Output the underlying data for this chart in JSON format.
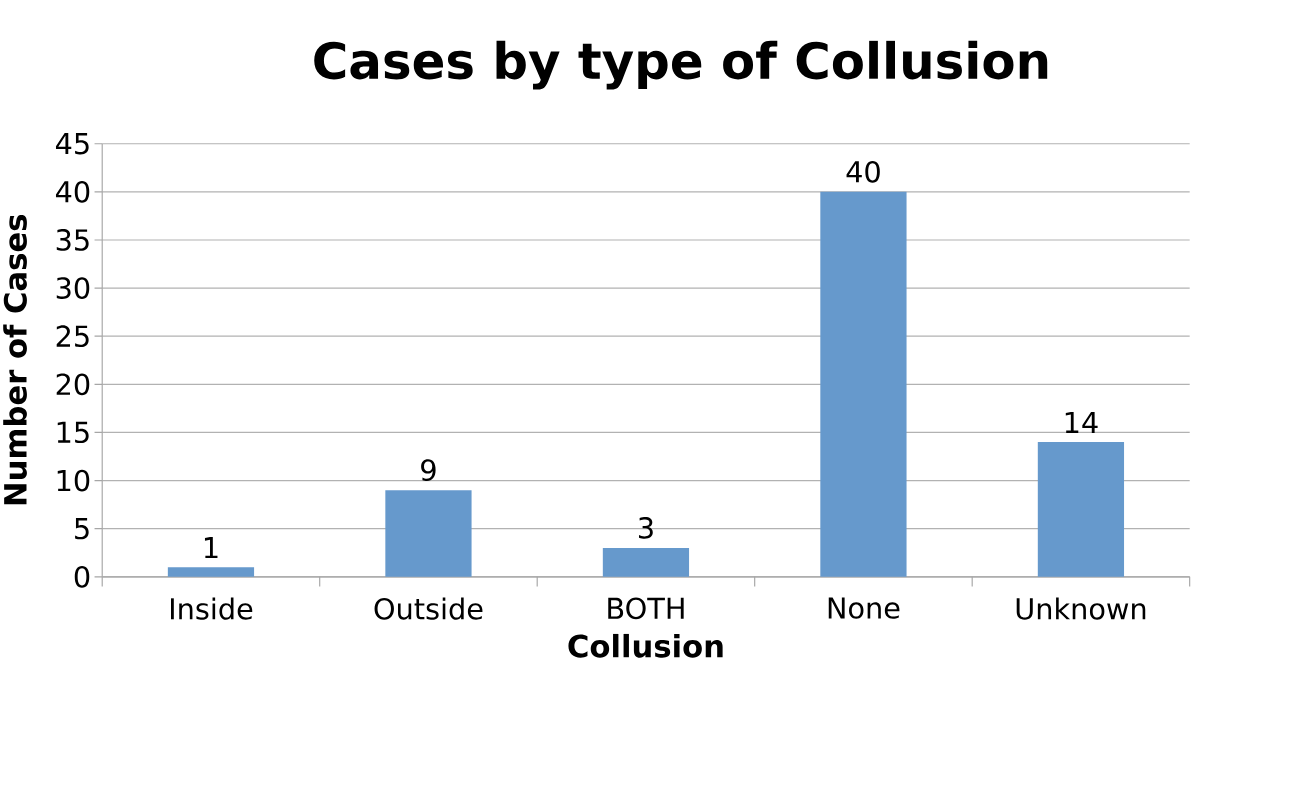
{
  "chart_data": {
    "type": "bar",
    "title": "Cases by type of Collusion",
    "xlabel": "Collusion",
    "ylabel": "Number of Cases",
    "categories": [
      "Inside",
      "Outside",
      "BOTH",
      "None",
      "Unknown"
    ],
    "values": [
      1,
      9,
      3,
      40,
      14
    ],
    "color": "#6699cc",
    "ylim": [
      0,
      45
    ],
    "yticks": [
      0,
      5,
      10,
      15,
      20,
      25,
      30,
      35,
      40,
      45
    ],
    "grid": "y",
    "data_labels": true
  }
}
